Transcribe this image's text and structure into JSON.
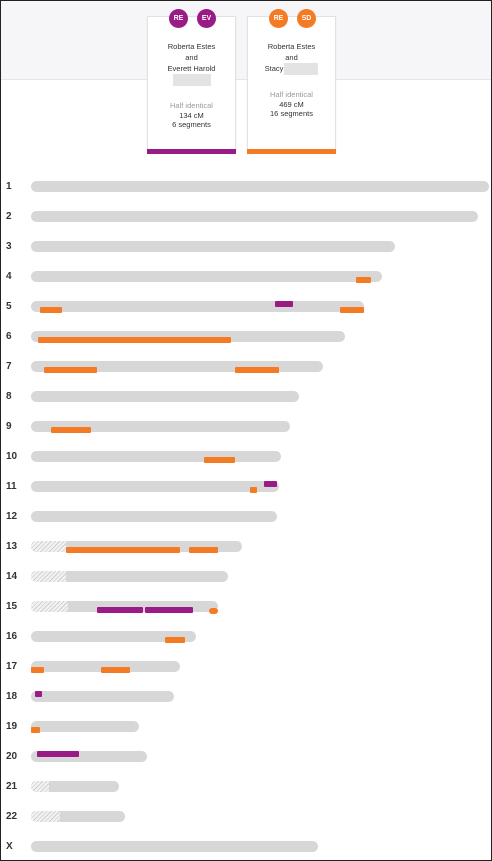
{
  "colors": {
    "purple": "#9a1a86",
    "orange": "#f57a24",
    "chromosome": "#d7d7d7"
  },
  "matches": [
    {
      "avatars": [
        "RE",
        "EV"
      ],
      "avatar_colors": [
        "#9a1a86",
        "#9a1a86"
      ],
      "line1": "Roberta Estes",
      "line2": "and",
      "line3": "Everett Harold",
      "relationship": "Half identical",
      "cm": "134 cM",
      "segments": "6 segments",
      "color": "#9a1a86"
    },
    {
      "avatars": [
        "RE",
        "SD"
      ],
      "avatar_colors": [
        "#f57a24",
        "#f57a24"
      ],
      "line1": "Roberta Estes",
      "line2": "and",
      "line3": "Stacy",
      "relationship": "Half identical",
      "cm": "469 cM",
      "segments": "16 segments",
      "color": "#f57a24"
    }
  ],
  "chromosomes": [
    {
      "label": "1",
      "length_mb": 249,
      "centromere": 0,
      "segments": []
    },
    {
      "label": "2",
      "length_mb": 243,
      "centromere": 0,
      "segments": []
    },
    {
      "label": "3",
      "length_mb": 198,
      "centromere": 0,
      "segments": []
    },
    {
      "label": "4",
      "length_mb": 191,
      "centromere": 0,
      "segments": [
        {
          "match": 1,
          "start": 177,
          "end": 185
        }
      ]
    },
    {
      "label": "5",
      "length_mb": 181,
      "centromere": 0,
      "segments": [
        {
          "match": 0,
          "start": 133,
          "end": 143,
          "lane": "top"
        },
        {
          "match": 1,
          "start": 5,
          "end": 17
        },
        {
          "match": 1,
          "start": 168,
          "end": 181
        }
      ]
    },
    {
      "label": "6",
      "length_mb": 171,
      "centromere": 0,
      "segments": [
        {
          "match": 1,
          "start": 4,
          "end": 109
        }
      ]
    },
    {
      "label": "7",
      "length_mb": 159,
      "centromere": 0,
      "segments": [
        {
          "match": 1,
          "start": 7,
          "end": 36
        },
        {
          "match": 1,
          "start": 111,
          "end": 135
        }
      ]
    },
    {
      "label": "8",
      "length_mb": 146,
      "centromere": 0,
      "segments": []
    },
    {
      "label": "9",
      "length_mb": 141,
      "centromere": 0,
      "segments": [
        {
          "match": 1,
          "start": 11,
          "end": 33
        }
      ]
    },
    {
      "label": "10",
      "length_mb": 136,
      "centromere": 0,
      "segments": [
        {
          "match": 1,
          "start": 94,
          "end": 111
        }
      ]
    },
    {
      "label": "11",
      "length_mb": 135,
      "centromere": 0,
      "segments": [
        {
          "match": 0,
          "start": 127,
          "end": 134,
          "lane": "top"
        },
        {
          "match": 1,
          "start": 119,
          "end": 123
        }
      ]
    },
    {
      "label": "12",
      "length_mb": 134,
      "centromere": 0,
      "segments": []
    },
    {
      "label": "13",
      "length_mb": 115,
      "centromere": 19,
      "segments": [
        {
          "match": 1,
          "start": 19,
          "end": 81
        },
        {
          "match": 1,
          "start": 86,
          "end": 102
        }
      ]
    },
    {
      "label": "14",
      "length_mb": 107,
      "centromere": 19,
      "segments": []
    },
    {
      "label": "15",
      "length_mb": 102,
      "centromere": 20,
      "segments": [
        {
          "match": 0,
          "start": 36,
          "end": 61
        },
        {
          "match": 0,
          "start": 62,
          "end": 88
        },
        {
          "match": 1,
          "start": 97,
          "end": 102,
          "lane": "low"
        }
      ]
    },
    {
      "label": "16",
      "length_mb": 90,
      "centromere": 0,
      "segments": [
        {
          "match": 1,
          "start": 73,
          "end": 84
        }
      ]
    },
    {
      "label": "17",
      "length_mb": 81,
      "centromere": 0,
      "segments": [
        {
          "match": 1,
          "start": 0,
          "end": 7
        },
        {
          "match": 1,
          "start": 38,
          "end": 54
        }
      ]
    },
    {
      "label": "18",
      "length_mb": 78,
      "centromere": 0,
      "segments": [
        {
          "match": 0,
          "start": 2,
          "end": 6,
          "lane": "top"
        }
      ]
    },
    {
      "label": "19",
      "length_mb": 59,
      "centromere": 0,
      "segments": [
        {
          "match": 1,
          "start": 0,
          "end": 5
        }
      ]
    },
    {
      "label": "20",
      "length_mb": 63,
      "centromere": 0,
      "segments": [
        {
          "match": 0,
          "start": 3,
          "end": 26,
          "lane": "top"
        }
      ]
    },
    {
      "label": "21",
      "length_mb": 48,
      "centromere": 10,
      "segments": []
    },
    {
      "label": "22",
      "length_mb": 51,
      "centromere": 16,
      "segments": []
    },
    {
      "label": "X",
      "length_mb": 156,
      "centromere": 0,
      "segments": []
    }
  ]
}
